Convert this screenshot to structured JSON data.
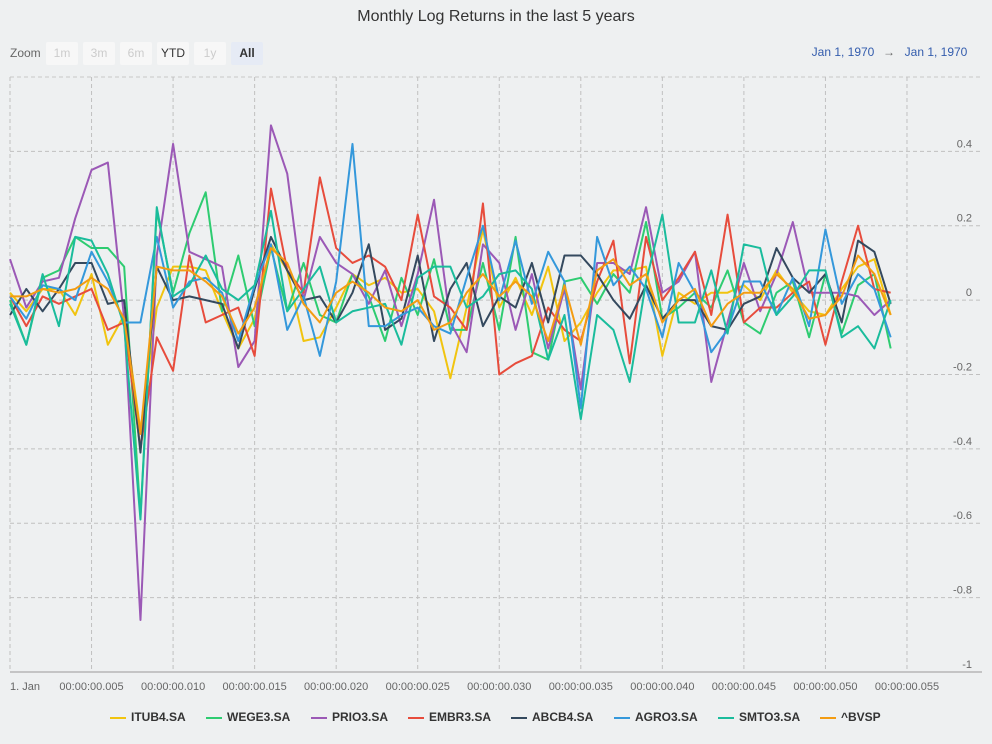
{
  "chart_data": {
    "type": "line",
    "title": "Monthly Log Returns in the last 5 years",
    "zoom_label": "Zoom",
    "zoom_buttons": [
      "1m",
      "3m",
      "6m",
      "YTD",
      "1y",
      "All"
    ],
    "date_range": [
      "Jan 1, 1970",
      "→",
      "Jan 1, 1970"
    ],
    "x": [
      0,
      1,
      2,
      3,
      4,
      5,
      6,
      7,
      8,
      9,
      10,
      11,
      12,
      13,
      14,
      15,
      16,
      17,
      18,
      19,
      20,
      21,
      22,
      23,
      24,
      25,
      26,
      27,
      28,
      29,
      30,
      31,
      32,
      33,
      34,
      35,
      36,
      37,
      38,
      39,
      40,
      41,
      42,
      43,
      44,
      45,
      46,
      47,
      48,
      49,
      50,
      51,
      52,
      53,
      54
    ],
    "xlim": [
      0,
      59.6
    ],
    "xticks": [
      {
        "value": 0,
        "label": "1. Jan"
      },
      {
        "value": 5,
        "label": "00:00:00.005"
      },
      {
        "value": 10,
        "label": "00:00:00.010"
      },
      {
        "value": 15,
        "label": "00:00:00.015"
      },
      {
        "value": 20,
        "label": "00:00:00.020"
      },
      {
        "value": 25,
        "label": "00:00:00.025"
      },
      {
        "value": 30,
        "label": "00:00:00.030"
      },
      {
        "value": 35,
        "label": "00:00:00.035"
      },
      {
        "value": 40,
        "label": "00:00:00.040"
      },
      {
        "value": 45,
        "label": "00:00:00.045"
      },
      {
        "value": 50,
        "label": "00:00:00.050"
      },
      {
        "value": 55,
        "label": "00:00:00.055"
      }
    ],
    "ylim": [
      -1,
      0.6
    ],
    "yticks": [
      -1,
      -0.8,
      -0.6,
      -0.4,
      -0.2,
      0,
      0.2,
      0.4
    ],
    "grid": true,
    "series": [
      {
        "name": "ITUB4.SA",
        "color": "#f1c40f",
        "values": [
          0.02,
          -0.03,
          0.03,
          0.03,
          -0.04,
          0.07,
          -0.12,
          -0.04,
          -0.35,
          -0.02,
          0.09,
          0.09,
          0.08,
          -0.03,
          -0.13,
          -0.05,
          0.15,
          0.08,
          -0.11,
          -0.1,
          -0.02,
          0.07,
          0.04,
          0.06,
          0.02,
          0.03,
          -0.03,
          -0.21,
          -0.02,
          0.19,
          -0.02,
          0.06,
          -0.04,
          0.09,
          -0.11,
          -0.06,
          0.02,
          0.08,
          0.08,
          0.09,
          -0.15,
          0.02,
          -0.01,
          0.02,
          0.02,
          0.04,
          0,
          0.08,
          0.02,
          -0.03,
          -0.04,
          0.03,
          0.09,
          0.11,
          -0.04
        ]
      },
      {
        "name": "WEGE3.SA",
        "color": "#2ecc71",
        "values": [
          0,
          -0.12,
          0.06,
          0.08,
          0.17,
          0.14,
          0.14,
          0.09,
          -0.58,
          0.24,
          0.02,
          0.18,
          0.29,
          -0.03,
          0.12,
          -0.07,
          0.14,
          -0.03,
          0.1,
          -0.04,
          -0.06,
          0.07,
          0.01,
          -0.11,
          0.06,
          -0.04,
          0.11,
          -0.08,
          -0.08,
          0.1,
          -0.08,
          0.17,
          -0.14,
          -0.16,
          0.05,
          0.06,
          -0.01,
          0.07,
          0.02,
          0.21,
          -0.05,
          -0.02,
          0.02,
          -0.02,
          0.08,
          -0.06,
          -0.09,
          0.02,
          0.05,
          -0.1,
          0.07,
          -0.09,
          0.04,
          0.07,
          -0.13
        ]
      },
      {
        "name": "PRIO3.SA",
        "color": "#9b59b6",
        "values": [
          0.11,
          -0.02,
          0.05,
          0.06,
          0.22,
          0.35,
          0.37,
          -0.05,
          -0.86,
          0.12,
          0.42,
          0.13,
          0.11,
          0.09,
          -0.18,
          -0.11,
          0.47,
          0.34,
          0,
          0.17,
          0.1,
          0.07,
          -0.01,
          0.08,
          -0.07,
          0.07,
          0.27,
          -0.06,
          -0.14,
          0.15,
          0.1,
          -0.08,
          0.07,
          -0.13,
          0.03,
          -0.24,
          0.1,
          0.1,
          0.07,
          0.25,
          0.02,
          0.05,
          0.13,
          -0.22,
          -0.06,
          0.1,
          -0.03,
          0.07,
          0.21,
          0.02,
          0.02,
          0.02,
          0.01,
          -0.04,
          0
        ]
      },
      {
        "name": "EMBR3.SA",
        "color": "#e74c3c",
        "values": [
          0.01,
          -0.07,
          0.01,
          -0.01,
          0.01,
          0.03,
          -0.08,
          -0.06,
          -0.4,
          -0.1,
          -0.19,
          0.12,
          -0.06,
          -0.04,
          -0.02,
          -0.15,
          0.3,
          0.08,
          0.02,
          0.33,
          0.14,
          0.1,
          0.12,
          0.09,
          0,
          0.23,
          0.01,
          -0.02,
          -0.08,
          0.26,
          -0.2,
          -0.17,
          -0.15,
          -0.02,
          -0.08,
          -0.11,
          0.05,
          0.16,
          -0.17,
          0.17,
          0,
          0.06,
          0.13,
          -0.04,
          0.23,
          -0.06,
          -0.02,
          -0.02,
          0.02,
          0.05,
          -0.12,
          0.05,
          0.2,
          0.03,
          0.02
        ]
      },
      {
        "name": "ABCB4.SA",
        "color": "#34495e",
        "values": [
          -0.04,
          0.03,
          -0.03,
          0.03,
          0.1,
          0.1,
          -0.01,
          0,
          -0.41,
          0.09,
          0,
          0.01,
          0,
          -0.01,
          -0.13,
          0.03,
          0.17,
          0.08,
          0,
          0.01,
          -0.06,
          0.02,
          0.15,
          -0.08,
          -0.05,
          0.12,
          -0.11,
          0.03,
          0.1,
          -0.07,
          0.01,
          -0.02,
          0.1,
          -0.06,
          0.12,
          0.12,
          0.07,
          0,
          -0.05,
          0.04,
          -0.05,
          0,
          0,
          -0.07,
          -0.08,
          -0.01,
          0.01,
          0.14,
          0.06,
          0.02,
          0.07,
          -0.06,
          0.16,
          0.13,
          -0.01
        ]
      },
      {
        "name": "AGRO3.SA",
        "color": "#3498db",
        "values": [
          0.01,
          -0.05,
          0.04,
          0.03,
          0,
          0.13,
          0.05,
          -0.06,
          -0.06,
          0.17,
          -0.02,
          0.05,
          0.06,
          0.02,
          -0.11,
          0.04,
          0.15,
          -0.08,
          0.01,
          -0.15,
          0.05,
          0.42,
          -0.07,
          -0.07,
          -0.04,
          -0.02,
          -0.07,
          -0.09,
          0.06,
          0.2,
          0,
          0.16,
          -0.01,
          0.13,
          0.05,
          -0.29,
          0.17,
          0.04,
          0.09,
          0.03,
          -0.1,
          0.1,
          0.02,
          -0.14,
          -0.08,
          0.05,
          0.05,
          -0.04,
          0.06,
          -0.07,
          0.19,
          -0.01,
          0.07,
          0.03,
          -0.1
        ]
      },
      {
        "name": "SMTO3.SA",
        "color": "#1abc9c",
        "values": [
          -0.01,
          -0.12,
          0.07,
          -0.07,
          0.17,
          0.16,
          0.07,
          -0.07,
          -0.59,
          0.25,
          0.01,
          0.04,
          0.12,
          0.03,
          0,
          0.04,
          0.24,
          -0.03,
          0.03,
          0.09,
          -0.06,
          -0.03,
          -0.02,
          -0.01,
          -0.12,
          0.06,
          0.09,
          0.09,
          -0.02,
          0.01,
          0.07,
          0.08,
          0.03,
          -0.16,
          -0.04,
          -0.32,
          -0.04,
          -0.08,
          -0.22,
          0.05,
          0.23,
          -0.06,
          -0.06,
          0.08,
          -0.09,
          0.15,
          0.14,
          -0.04,
          0.01,
          0.08,
          0.08,
          -0.1,
          -0.07,
          -0.13,
          0
        ]
      },
      {
        "name": "^BVSP",
        "color": "#f39c12",
        "values": [
          0.01,
          0.01,
          0.03,
          0.02,
          0.03,
          0.06,
          0.03,
          -0.05,
          -0.36,
          0.09,
          0.08,
          0.08,
          0.05,
          0.01,
          -0.09,
          -0.02,
          0.14,
          0.1,
          -0.01,
          -0.06,
          0.02,
          0.05,
          0.02,
          -0.02,
          -0.03,
          0,
          -0.08,
          -0.06,
          0.02,
          0.07,
          0.01,
          0.05,
          0.01,
          -0.11,
          0.04,
          -0.12,
          0.08,
          0.11,
          0.04,
          0.07,
          -0.06,
          0,
          0.03,
          -0.07,
          -0.01,
          0.02,
          0.02,
          0.07,
          0.03,
          -0.05,
          -0.04,
          0.01,
          0.12,
          0.07,
          -0.04
        ]
      }
    ]
  }
}
